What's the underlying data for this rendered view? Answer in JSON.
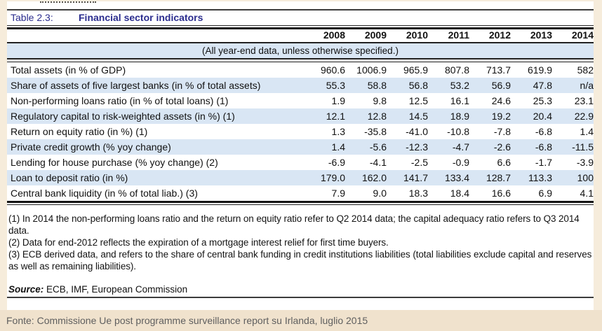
{
  "figure": {
    "table_label": "Table 2.3:",
    "title": "Financial sector indicators",
    "subtitle": "(All year-end data, unless otherwise specified.)",
    "columns": [
      "2008",
      "2009",
      "2010",
      "2011",
      "2012",
      "2013",
      "2014"
    ],
    "rows": [
      {
        "label": "Total assets (in % of GDP)",
        "values": [
          "960.6",
          "1006.9",
          "965.9",
          "807.8",
          "713.7",
          "619.9",
          "582"
        ]
      },
      {
        "label": "Share of assets of five largest banks (in % of total assets)",
        "values": [
          "55.3",
          "58.8",
          "56.8",
          "53.2",
          "56.9",
          "47.8",
          "n/a"
        ]
      },
      {
        "label": "Non-performing loans ratio (in % of total loans) (1)",
        "values": [
          "1.9",
          "9.8",
          "12.5",
          "16.1",
          "24.6",
          "25.3",
          "23.1"
        ]
      },
      {
        "label": "Regulatory capital to risk-weighted assets (in %) (1)",
        "values": [
          "12.1",
          "12.8",
          "14.5",
          "18.9",
          "19.2",
          "20.4",
          "22.9"
        ]
      },
      {
        "label": "Return on equity ratio (in %) (1)",
        "values": [
          "1.3",
          "-35.8",
          "-41.0",
          "-10.8",
          "-7.8",
          "-6.8",
          "1.4"
        ]
      },
      {
        "label": "Private credit growth (% yoy change)",
        "values": [
          "1.4",
          "-5.6",
          "-12.3",
          "-4.7",
          "-2.6",
          "-6.8",
          "-11.5"
        ]
      },
      {
        "label": "Lending for house purchase (% yoy change) (2)",
        "values": [
          "-6.9",
          "-4.1",
          "-2.5",
          "-0.9",
          "6.6",
          "-1.7",
          "-3.9"
        ]
      },
      {
        "label": "Loan to deposit ratio (in %)",
        "values": [
          "179.0",
          "162.0",
          "141.7",
          "133.4",
          "128.7",
          "113.3",
          "100"
        ]
      },
      {
        "label": "Central bank liquidity (in % of total liab.) (3)",
        "values": [
          "7.9",
          "9.0",
          "18.3",
          "18.4",
          "16.6",
          "6.9",
          "4.1"
        ]
      }
    ],
    "footnotes": [
      "(1) In 2014 the non-performing loans ratio and the return on equity ratio refer to Q2 2014 data; the capital adequacy ratio refers to Q3 2014 data.",
      "(2) Data for end-2012 reflects the expiration of a mortgage interest relief for first time buyers.",
      "(3) ECB derived data, and refers to the share of central bank funding in credit institutions liabilities (total liabilities exclude capital and reserves as well as remaining liabilities)."
    ],
    "source_label": "Source:",
    "source_text": "ECB, IMF, European Commission",
    "caption": "Fonte: Commissione Ue post programme surveillance report su Irlanda, luglio 2015",
    "colors": {
      "frame_beige": "#f6ecdb",
      "caption_bar_beige": "#f0e2cd",
      "row_highlight_blue": "#d9e6f4",
      "title_navy": "#2b2d8e",
      "rule_dark": "#222222",
      "caption_gray": "#5f5f5f"
    }
  }
}
